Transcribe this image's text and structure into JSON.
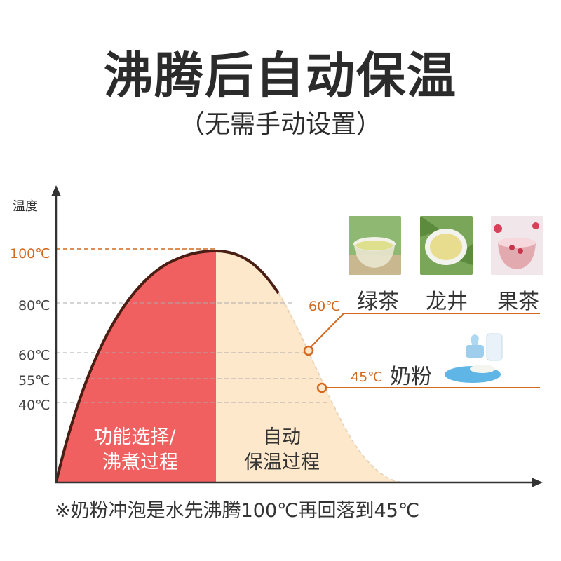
{
  "header": {
    "title": "沸腾后自动保温",
    "subtitle": "（无需手动设置）"
  },
  "chart": {
    "y_axis_label": "温度",
    "ticks": [
      {
        "label": "100℃",
        "value": 100,
        "highlight": true
      },
      {
        "label": "80℃",
        "value": 80,
        "highlight": false
      },
      {
        "label": "60℃",
        "value": 60,
        "highlight": false
      },
      {
        "label": "55℃",
        "value": 55,
        "highlight": false
      },
      {
        "label": "40℃",
        "value": 40,
        "highlight": false
      }
    ],
    "regions": {
      "boil": {
        "line1": "功能选择/",
        "line2": "沸煮过程",
        "color": "#f06060"
      },
      "keep_warm": {
        "line1": "自动",
        "line2": "保温过程",
        "color": "#fde8cc"
      }
    },
    "markers": {
      "tea": {
        "label": "60℃",
        "value": 60
      },
      "milk": {
        "label": "45℃",
        "value": 45
      }
    },
    "colors": {
      "accent": "#d2691e",
      "curve": "#4a1e12",
      "axis": "#333333"
    }
  },
  "teas": [
    {
      "name": "绿茶",
      "icon": "green-tea-cup"
    },
    {
      "name": "龙井",
      "icon": "longjing-tea-cup"
    },
    {
      "name": "果茶",
      "icon": "fruit-tea-cup"
    }
  ],
  "milk": {
    "name": "奶粉",
    "icon": "baby-bottle"
  },
  "footnote": "※奶粉冲泡是水先沸腾100℃再回落到45℃"
}
